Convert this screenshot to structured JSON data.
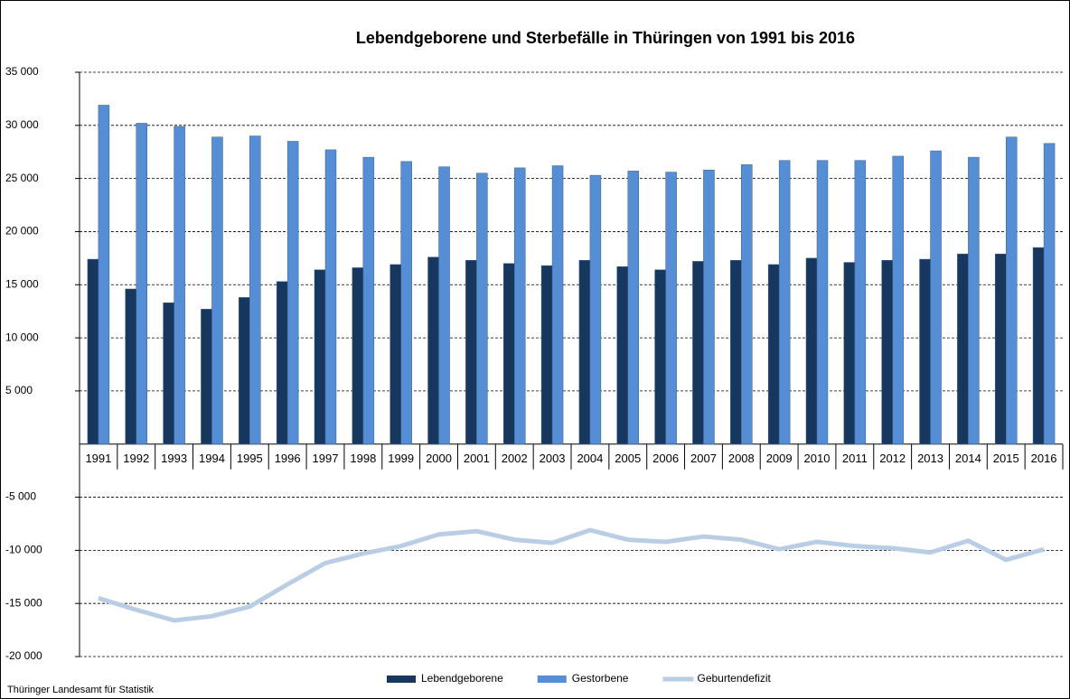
{
  "chart_data": {
    "type": "bar",
    "title": "Lebendgeborene und Sterbefälle in Thüringen von 1991 bis 2016",
    "source": "Thüringer Landesamt für Statistik",
    "categories": [
      "1991",
      "1992",
      "1993",
      "1994",
      "1995",
      "1996",
      "1997",
      "1998",
      "1999",
      "2000",
      "2001",
      "2002",
      "2003",
      "2004",
      "2005",
      "2006",
      "2007",
      "2008",
      "2009",
      "2010",
      "2011",
      "2012",
      "2013",
      "2014",
      "2015",
      "2016"
    ],
    "series": [
      {
        "name": "Lebendgeborene",
        "type": "bar",
        "color": "#17375e",
        "values": [
          17400,
          14600,
          13300,
          12700,
          13800,
          15300,
          16400,
          16600,
          16900,
          17600,
          17300,
          17000,
          16800,
          17300,
          16700,
          16400,
          17200,
          17300,
          16900,
          17500,
          17100,
          17300,
          17400,
          17900,
          17900,
          18500
        ]
      },
      {
        "name": "Gestorbene",
        "type": "bar",
        "color": "#558ed5",
        "values": [
          31900,
          30200,
          29900,
          28900,
          29000,
          28500,
          27700,
          27000,
          26600,
          26100,
          25500,
          26000,
          26200,
          25300,
          25700,
          25600,
          25800,
          26300,
          26700,
          26700,
          26700,
          27100,
          27600,
          27000,
          28900,
          28300
        ]
      },
      {
        "name": "Geburtendefizit",
        "type": "line",
        "color": "#b9cde5",
        "values": [
          -14500,
          -15600,
          -16600,
          -16200,
          -15300,
          -13200,
          -11200,
          -10300,
          -9600,
          -8500,
          -8200,
          -9000,
          -9300,
          -8100,
          -9000,
          -9200,
          -8700,
          -9000,
          -9900,
          -9200,
          -9600,
          -9800,
          -10200,
          -9100,
          -10900,
          -9900
        ]
      }
    ],
    "ylim": [
      -20000,
      35000
    ],
    "yticks": [
      {
        "value": -20000,
        "label": "-20 000"
      },
      {
        "value": -15000,
        "label": "-15 000"
      },
      {
        "value": -10000,
        "label": "-10 000"
      },
      {
        "value": -5000,
        "label": "-5 000"
      },
      {
        "value": 5000,
        "label": "5 000"
      },
      {
        "value": 10000,
        "label": "10 000"
      },
      {
        "value": 15000,
        "label": "15 000"
      },
      {
        "value": 20000,
        "label": "20 000"
      },
      {
        "value": 25000,
        "label": "25 000"
      },
      {
        "value": 30000,
        "label": "30 000"
      },
      {
        "value": 35000,
        "label": "35 000"
      }
    ],
    "grid": true,
    "legend": "bottom"
  }
}
